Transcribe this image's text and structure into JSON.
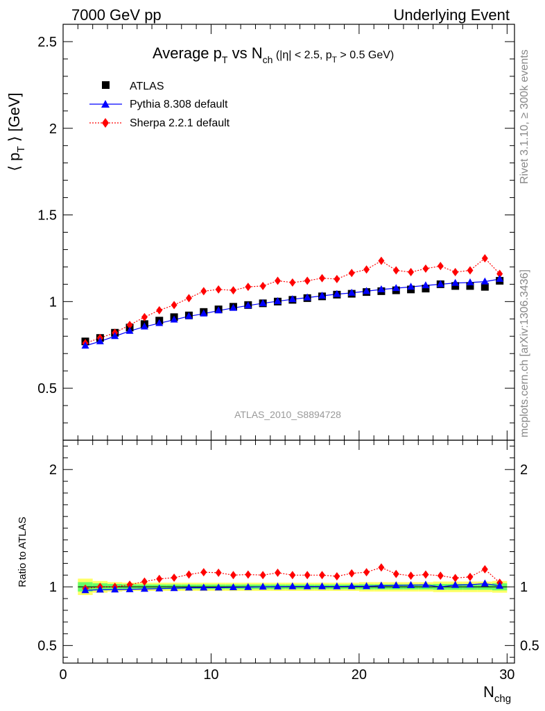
{
  "header": {
    "left": "7000 GeV pp",
    "right": "Underlying Event"
  },
  "title": {
    "main": "Average p",
    "main_sub": "T",
    "vs": " vs N",
    "vs_sub": "ch",
    "cut_a": " (|η| < 2.5, p",
    "cut_sub": "T",
    "cut_b": " > 0.5 GeV)"
  },
  "ylabel": {
    "open": "⟨ p",
    "sub": "T",
    "close": " ⟩ [GeV]"
  },
  "xlabel": {
    "main": "N",
    "sub": "chg"
  },
  "ratio_ylabel": "Ratio to ATLAS",
  "analysis_tag": "ATLAS_2010_S8894728",
  "side_text": {
    "rivet": "Rivet 3.1.10, ≥ 300k events",
    "mcplots": "mcplots.cern.ch [arXiv:1306.3436]"
  },
  "colors": {
    "atlas": "#000000",
    "pythia": "#0000ff",
    "sherpa": "#ff0000",
    "band_inner": "#66ff66",
    "band_outer": "#ffff66",
    "analysis_tag": "#999999"
  },
  "chart_data": [
    {
      "type": "scatter",
      "panel": "main",
      "xlim": [
        0,
        30.5
      ],
      "ylim": [
        0.2,
        2.6
      ],
      "yticks": [
        0.5,
        1,
        1.5,
        2,
        2.5
      ],
      "ytick_labels": [
        "0.5",
        "1",
        "1.5",
        "2",
        "2.5"
      ],
      "legend_placement": "top-left",
      "x": [
        1.5,
        2.5,
        3.5,
        4.5,
        5.5,
        6.5,
        7.5,
        8.5,
        9.5,
        10.5,
        11.5,
        12.5,
        13.5,
        14.5,
        15.5,
        16.5,
        17.5,
        18.5,
        19.5,
        20.5,
        21.5,
        22.5,
        23.5,
        24.5,
        25.5,
        26.5,
        27.5,
        28.5,
        29.5
      ],
      "series": [
        {
          "name": "ATLAS",
          "marker": "square",
          "values": [
            0.77,
            0.79,
            0.82,
            0.85,
            0.87,
            0.89,
            0.91,
            0.92,
            0.94,
            0.955,
            0.97,
            0.98,
            0.99,
            1.0,
            1.01,
            1.02,
            1.03,
            1.04,
            1.045,
            1.055,
            1.06,
            1.065,
            1.07,
            1.075,
            1.1,
            1.09,
            1.09,
            1.085,
            1.12
          ]
        },
        {
          "name": "Pythia 8.308 default",
          "marker": "triangle",
          "line": "solid",
          "values": [
            0.745,
            0.77,
            0.8,
            0.83,
            0.855,
            0.875,
            0.895,
            0.915,
            0.93,
            0.948,
            0.963,
            0.977,
            0.99,
            1.002,
            1.013,
            1.023,
            1.033,
            1.043,
            1.05,
            1.06,
            1.07,
            1.077,
            1.085,
            1.093,
            1.1,
            1.107,
            1.11,
            1.115,
            1.13
          ]
        },
        {
          "name": "Sherpa 2.2.1 default",
          "marker": "diamond",
          "line": "dotted",
          "values": [
            0.76,
            0.79,
            0.82,
            0.865,
            0.91,
            0.95,
            0.98,
            1.02,
            1.06,
            1.07,
            1.065,
            1.085,
            1.09,
            1.12,
            1.11,
            1.12,
            1.135,
            1.13,
            1.165,
            1.185,
            1.235,
            1.18,
            1.17,
            1.19,
            1.205,
            1.17,
            1.18,
            1.25,
            1.16
          ]
        }
      ]
    },
    {
      "type": "scatter",
      "panel": "ratio",
      "ylabel": "Ratio to ATLAS",
      "xlim": [
        0,
        30.5
      ],
      "ylim": [
        0.35,
        2.25
      ],
      "yticks": [
        0.5,
        1,
        2
      ],
      "ytick_labels": [
        "0.5",
        "1",
        "2"
      ],
      "xticks": [
        0,
        10,
        20,
        30
      ],
      "xtick_labels": [
        "0",
        "10",
        "20",
        "30"
      ],
      "x": [
        1.5,
        2.5,
        3.5,
        4.5,
        5.5,
        6.5,
        7.5,
        8.5,
        9.5,
        10.5,
        11.5,
        12.5,
        13.5,
        14.5,
        15.5,
        16.5,
        17.5,
        18.5,
        19.5,
        20.5,
        21.5,
        22.5,
        23.5,
        24.5,
        25.5,
        26.5,
        27.5,
        28.5,
        29.5
      ],
      "band_inner_halfwidth": [
        0.04,
        0.03,
        0.025,
        0.022,
        0.02,
        0.02,
        0.02,
        0.02,
        0.02,
        0.02,
        0.02,
        0.02,
        0.02,
        0.02,
        0.02,
        0.02,
        0.02,
        0.02,
        0.02,
        0.022,
        0.022,
        0.022,
        0.022,
        0.022,
        0.025,
        0.025,
        0.025,
        0.025,
        0.03
      ],
      "band_outer_halfwidth": [
        0.07,
        0.05,
        0.04,
        0.035,
        0.035,
        0.035,
        0.035,
        0.035,
        0.035,
        0.035,
        0.035,
        0.035,
        0.035,
        0.035,
        0.035,
        0.035,
        0.035,
        0.035,
        0.035,
        0.04,
        0.04,
        0.04,
        0.04,
        0.04,
        0.045,
        0.045,
        0.045,
        0.045,
        0.05
      ],
      "series": [
        {
          "name": "Pythia 8.308 default",
          "values": [
            0.97,
            0.975,
            0.976,
            0.978,
            0.982,
            0.985,
            0.988,
            0.992,
            0.992,
            0.993,
            0.995,
            0.997,
            1.0,
            1.002,
            1.003,
            1.003,
            1.003,
            1.003,
            1.005,
            1.005,
            1.01,
            1.012,
            1.014,
            1.017,
            1.0,
            1.015,
            1.018,
            1.028,
            1.008
          ]
        },
        {
          "name": "Sherpa 2.2.1 default",
          "values": [
            0.985,
            1.0,
            1.0,
            1.018,
            1.045,
            1.068,
            1.078,
            1.105,
            1.125,
            1.12,
            1.1,
            1.105,
            1.1,
            1.12,
            1.1,
            1.1,
            1.1,
            1.09,
            1.115,
            1.125,
            1.165,
            1.11,
            1.095,
            1.105,
            1.095,
            1.075,
            1.085,
            1.15,
            1.035
          ]
        }
      ]
    }
  ]
}
